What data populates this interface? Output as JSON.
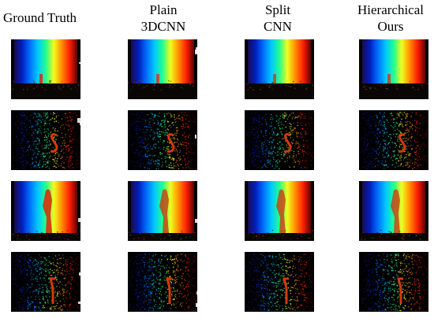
{
  "columns": [
    {
      "id": "gt",
      "lines": [
        "Ground  Truth"
      ]
    },
    {
      "id": "plain",
      "lines": [
        "Plain",
        "3DCNN"
      ]
    },
    {
      "id": "split",
      "lines": [
        "Split",
        "CNN"
      ]
    },
    {
      "id": "hier",
      "lines": [
        "Hierarchical",
        "Ours"
      ]
    }
  ],
  "rows": [
    {
      "id": "row-1",
      "content": "rainbow-gradient-small-figure"
    },
    {
      "id": "row-2",
      "content": "sparse-points-s-shape"
    },
    {
      "id": "row-3",
      "content": "rainbow-gradient-standing-person"
    },
    {
      "id": "row-4",
      "content": "sparse-points-figure"
    }
  ],
  "palette": {
    "gradient": [
      "#1a0a50",
      "#0020c0",
      "#0070ff",
      "#00c8ff",
      "#20ff90",
      "#f0ff20",
      "#ff9000",
      "#ff2000",
      "#600000"
    ],
    "figure": "#d03a10",
    "background": "#000000"
  }
}
